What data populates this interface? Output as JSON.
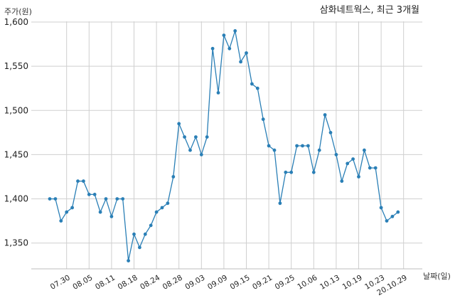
{
  "chart_data": {
    "type": "line",
    "title": "삼화네트웍스, 최근 3개월",
    "ylabel": "주가(원)",
    "xlabel": "날짜(일)",
    "ylim": [
      1320,
      1600
    ],
    "yticks": [
      "1,350",
      "1,400",
      "1,450",
      "1,500",
      "1,550",
      "1,600"
    ],
    "ytick_values": [
      1350,
      1400,
      1450,
      1500,
      1550,
      1600
    ],
    "xtick_labels": [
      "07.30",
      "08.05",
      "08.11",
      "08.18",
      "08.24",
      "08.28",
      "09.03",
      "09.09",
      "09.15",
      "09.21",
      "09.25",
      "10.06",
      "10.13",
      "10.19",
      "10.23",
      "20.10.29"
    ],
    "xtick_positions": [
      3,
      7,
      11,
      15,
      19,
      23,
      27,
      31,
      35,
      39,
      43,
      47,
      51,
      55,
      59,
      63
    ],
    "grid": true,
    "color": "#2a7fb6",
    "series": [
      {
        "values": [
          1400,
          1400,
          1375,
          1385,
          1390,
          1420,
          1420,
          1405,
          1405,
          1385,
          1400,
          1380,
          1400,
          1400,
          1330,
          1360,
          1345,
          1360,
          1370,
          1385,
          1390,
          1395,
          1425,
          1485,
          1470,
          1455,
          1470,
          1450,
          1470,
          1570,
          1520,
          1585,
          1570,
          1590,
          1555,
          1565,
          1530,
          1525,
          1490,
          1460,
          1455,
          1395,
          1430,
          1430,
          1460,
          1460,
          1460,
          1430,
          1455,
          1495,
          1475,
          1450,
          1420,
          1440,
          1445,
          1425,
          1455,
          1435,
          1435,
          1390,
          1375,
          1380,
          1385
        ]
      }
    ]
  }
}
